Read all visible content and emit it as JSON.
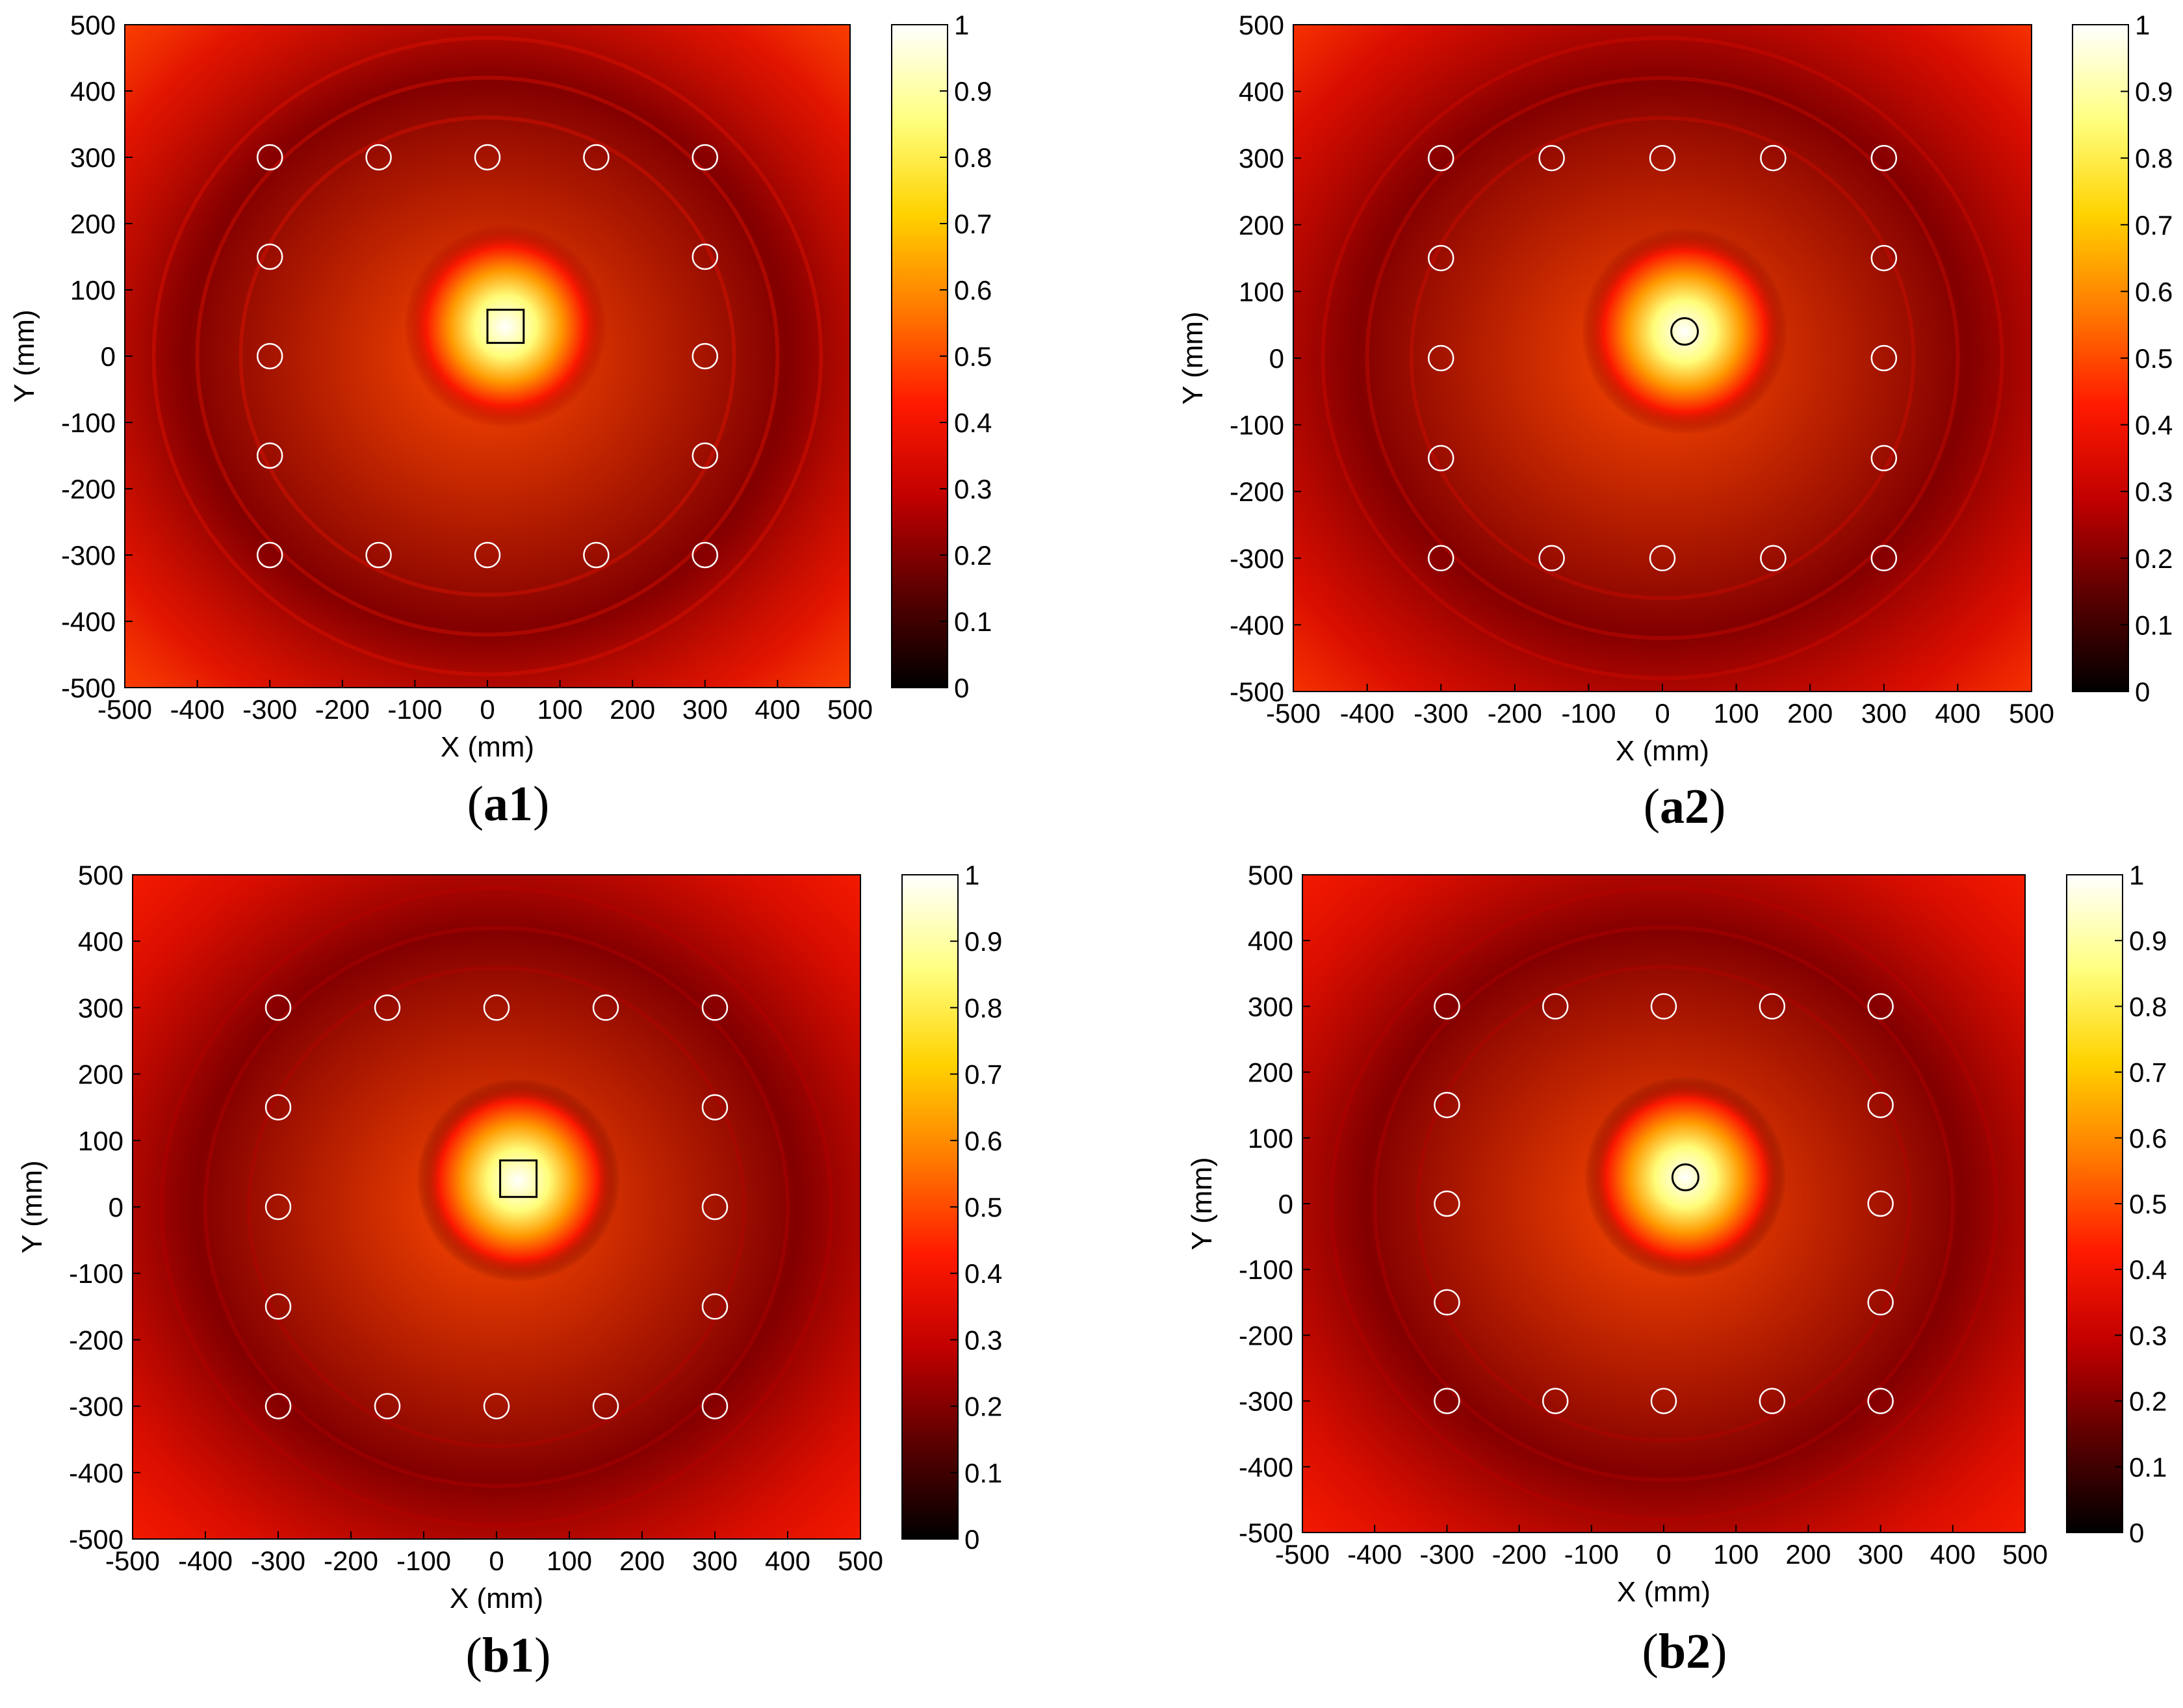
{
  "figure": {
    "colormap": [
      "#000000",
      "#5a0000",
      "#c00000",
      "#ff1a00",
      "#ff7a00",
      "#ffd200",
      "#ffff80",
      "#ffffff"
    ],
    "sensor_circle_color": "#ffffff",
    "defect_outline_color": "#000000"
  },
  "chart_data": [
    {
      "type": "heatmap",
      "caption_letter": "a1",
      "xlabel": "X (mm)",
      "ylabel": "Y (mm)",
      "xlim": [
        -500,
        500
      ],
      "ylim": [
        -500,
        500
      ],
      "xticks": [
        "-500",
        "-400",
        "-300",
        "-200",
        "-100",
        "0",
        "100",
        "200",
        "300",
        "400",
        "500"
      ],
      "yticks": [
        "500",
        "400",
        "300",
        "200",
        "100",
        "0",
        "-100",
        "-200",
        "-300",
        "-400",
        "-500"
      ],
      "colorbar": {
        "range": [
          0,
          1
        ],
        "ticks": [
          "1",
          "0.9",
          "0.8",
          "0.7",
          "0.6",
          "0.5",
          "0.4",
          "0.3",
          "0.2",
          "0.1",
          "0"
        ]
      },
      "background_intensity": 0.22,
      "hotspot": {
        "x": 25,
        "y": 45,
        "peak": 1.0
      },
      "defect": {
        "shape": "square",
        "x_range": [
          0,
          50
        ],
        "y_range": [
          20,
          70
        ]
      },
      "sensors": [
        {
          "x": -300,
          "y": 300
        },
        {
          "x": -150,
          "y": 300
        },
        {
          "x": 0,
          "y": 300
        },
        {
          "x": 150,
          "y": 300
        },
        {
          "x": 300,
          "y": 300
        },
        {
          "x": -300,
          "y": 150
        },
        {
          "x": 300,
          "y": 150
        },
        {
          "x": -300,
          "y": 0
        },
        {
          "x": 300,
          "y": 0
        },
        {
          "x": -300,
          "y": -150
        },
        {
          "x": 300,
          "y": -150
        },
        {
          "x": -300,
          "y": -300
        },
        {
          "x": -150,
          "y": -300
        },
        {
          "x": 0,
          "y": -300
        },
        {
          "x": 150,
          "y": -300
        },
        {
          "x": 300,
          "y": -300
        }
      ]
    },
    {
      "type": "heatmap",
      "caption_letter": "a2",
      "xlabel": "X (mm)",
      "ylabel": "Y (mm)",
      "xlim": [
        -500,
        500
      ],
      "ylim": [
        -500,
        500
      ],
      "xticks": [
        "-500",
        "-400",
        "-300",
        "-200",
        "-100",
        "0",
        "100",
        "200",
        "300",
        "400",
        "500"
      ],
      "yticks": [
        "500",
        "400",
        "300",
        "200",
        "100",
        "0",
        "-100",
        "-200",
        "-300",
        "-400",
        "-500"
      ],
      "colorbar": {
        "range": [
          0,
          1
        ],
        "ticks": [
          "1",
          "0.9",
          "0.8",
          "0.7",
          "0.6",
          "0.5",
          "0.4",
          "0.3",
          "0.2",
          "0.1",
          "0"
        ]
      },
      "background_intensity": 0.17,
      "hotspot": {
        "x": 30,
        "y": 40,
        "peak": 1.0
      },
      "defect": {
        "shape": "circle",
        "x": 30,
        "y": 40,
        "radius": 18
      },
      "sensors": [
        {
          "x": -300,
          "y": 300
        },
        {
          "x": -150,
          "y": 300
        },
        {
          "x": 0,
          "y": 300
        },
        {
          "x": 150,
          "y": 300
        },
        {
          "x": 300,
          "y": 300
        },
        {
          "x": -300,
          "y": 150
        },
        {
          "x": 300,
          "y": 150
        },
        {
          "x": -300,
          "y": 0
        },
        {
          "x": 300,
          "y": 0
        },
        {
          "x": -300,
          "y": -150
        },
        {
          "x": 300,
          "y": -150
        },
        {
          "x": -300,
          "y": -300
        },
        {
          "x": -150,
          "y": -300
        },
        {
          "x": 0,
          "y": -300
        },
        {
          "x": 150,
          "y": -300
        },
        {
          "x": 300,
          "y": -300
        }
      ]
    },
    {
      "type": "heatmap",
      "caption_letter": "b1",
      "xlabel": "X (mm)",
      "ylabel": "Y (mm)",
      "xlim": [
        -500,
        500
      ],
      "ylim": [
        -500,
        500
      ],
      "xticks": [
        "-500",
        "-400",
        "-300",
        "-200",
        "-100",
        "0",
        "100",
        "200",
        "300",
        "400",
        "500"
      ],
      "yticks": [
        "500",
        "400",
        "300",
        "200",
        "100",
        "0",
        "-100",
        "-200",
        "-300",
        "-400",
        "-500"
      ],
      "colorbar": {
        "range": [
          0,
          1
        ],
        "ticks": [
          "1",
          "0.9",
          "0.8",
          "0.7",
          "0.6",
          "0.5",
          "0.4",
          "0.3",
          "0.2",
          "0.1",
          "0"
        ]
      },
      "background_intensity": 0.1,
      "hotspot": {
        "x": 30,
        "y": 40,
        "peak": 1.0
      },
      "defect": {
        "shape": "square",
        "x_range": [
          5,
          55
        ],
        "y_range": [
          15,
          70
        ]
      },
      "sensors": [
        {
          "x": -300,
          "y": 300
        },
        {
          "x": -150,
          "y": 300
        },
        {
          "x": 0,
          "y": 300
        },
        {
          "x": 150,
          "y": 300
        },
        {
          "x": 300,
          "y": 300
        },
        {
          "x": -300,
          "y": 150
        },
        {
          "x": 300,
          "y": 150
        },
        {
          "x": -300,
          "y": 0
        },
        {
          "x": 300,
          "y": 0
        },
        {
          "x": -300,
          "y": -150
        },
        {
          "x": 300,
          "y": -150
        },
        {
          "x": -300,
          "y": -300
        },
        {
          "x": -150,
          "y": -300
        },
        {
          "x": 0,
          "y": -300
        },
        {
          "x": 150,
          "y": -300
        },
        {
          "x": 300,
          "y": -300
        }
      ]
    },
    {
      "type": "heatmap",
      "caption_letter": "b2",
      "xlabel": "X (mm)",
      "ylabel": "Y (mm)",
      "xlim": [
        -500,
        500
      ],
      "ylim": [
        -500,
        500
      ],
      "xticks": [
        "-500",
        "-400",
        "-300",
        "-200",
        "-100",
        "0",
        "100",
        "200",
        "300",
        "400",
        "500"
      ],
      "yticks": [
        "500",
        "400",
        "300",
        "200",
        "100",
        "0",
        "-100",
        "-200",
        "-300",
        "-400",
        "-500"
      ],
      "colorbar": {
        "range": [
          0,
          1
        ],
        "ticks": [
          "1",
          "0.9",
          "0.8",
          "0.7",
          "0.6",
          "0.5",
          "0.4",
          "0.3",
          "0.2",
          "0.1",
          "0"
        ]
      },
      "background_intensity": 0.1,
      "hotspot": {
        "x": 30,
        "y": 40,
        "peak": 1.0
      },
      "defect": {
        "shape": "circle",
        "x": 30,
        "y": 40,
        "radius": 18
      },
      "sensors": [
        {
          "x": -300,
          "y": 300
        },
        {
          "x": -150,
          "y": 300
        },
        {
          "x": 0,
          "y": 300
        },
        {
          "x": 150,
          "y": 300
        },
        {
          "x": 300,
          "y": 300
        },
        {
          "x": -300,
          "y": 150
        },
        {
          "x": 300,
          "y": 150
        },
        {
          "x": -300,
          "y": 0
        },
        {
          "x": 300,
          "y": 0
        },
        {
          "x": -300,
          "y": -150
        },
        {
          "x": 300,
          "y": -150
        },
        {
          "x": -300,
          "y": -300
        },
        {
          "x": -150,
          "y": -300
        },
        {
          "x": 0,
          "y": -300
        },
        {
          "x": 150,
          "y": -300
        },
        {
          "x": 300,
          "y": -300
        }
      ]
    }
  ]
}
